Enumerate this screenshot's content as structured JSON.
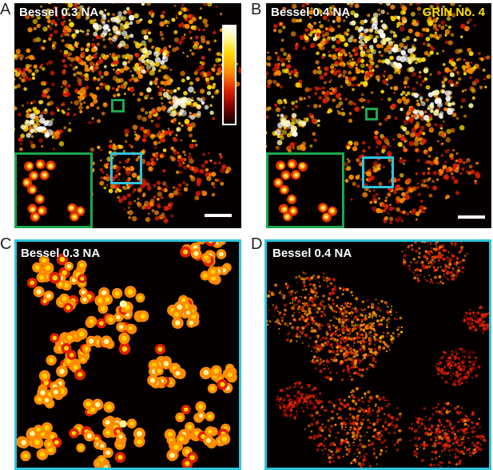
{
  "panels": {
    "A": {
      "letter": "A",
      "title": "Bessel 0.3 NA"
    },
    "B": {
      "letter": "B",
      "title": "Bessel 0.4 NA",
      "label": "GRIN No. 4"
    },
    "C": {
      "letter": "C",
      "title": "Bessel 0.3 NA"
    },
    "D": {
      "letter": "D",
      "title": "Bessel 0.4 NA"
    }
  },
  "colors": {
    "inset_border": "#1aa84e",
    "roi_border": "#2ec4dc",
    "grin_label": "#ffe000",
    "colormap": [
      "#100000",
      "#7a0000",
      "#e02000",
      "#ff8a00",
      "#ffd800",
      "#fff7a0",
      "#ffffff"
    ]
  }
}
